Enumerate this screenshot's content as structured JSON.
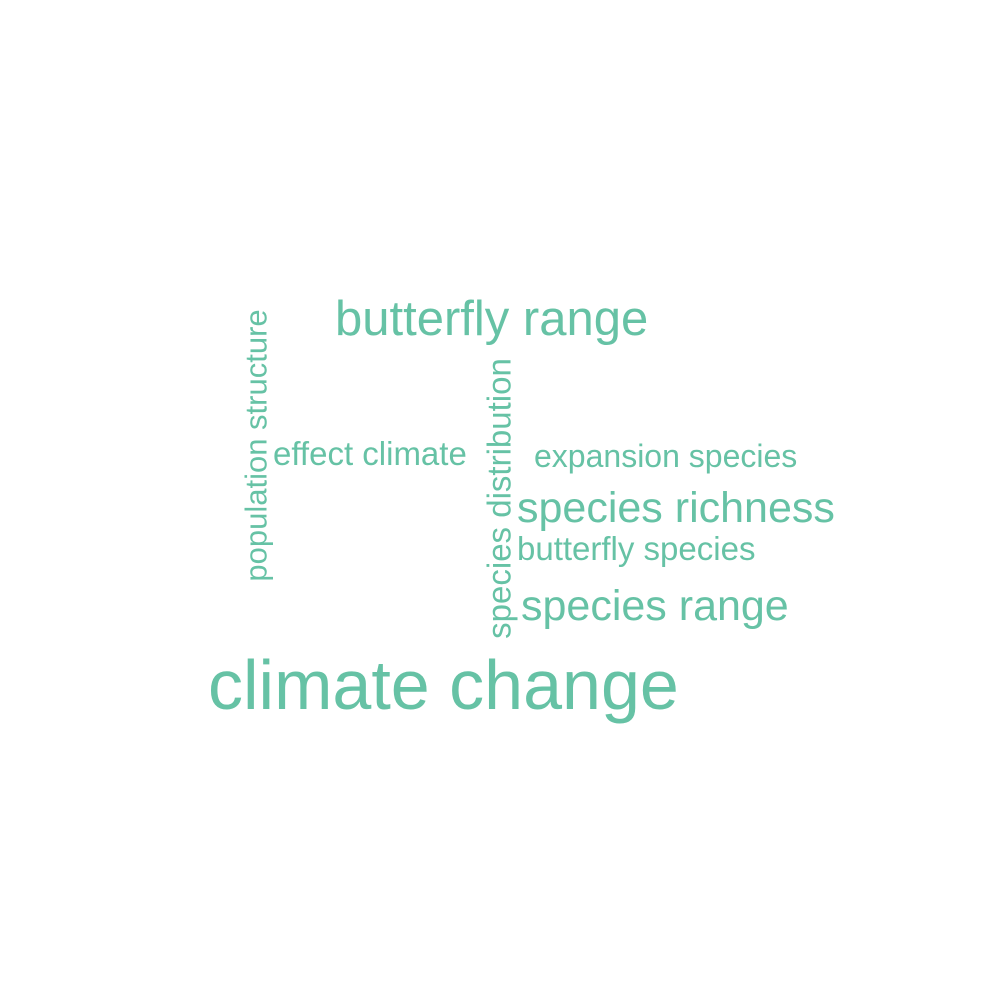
{
  "word_cloud": {
    "color": "#66c2a5",
    "words": [
      {
        "text": "climate change",
        "orientation": "horizontal"
      },
      {
        "text": "butterfly range",
        "orientation": "horizontal"
      },
      {
        "text": "population structure",
        "orientation": "vertical"
      },
      {
        "text": "effect climate",
        "orientation": "horizontal"
      },
      {
        "text": "species distribution",
        "orientation": "vertical"
      },
      {
        "text": "expansion species",
        "orientation": "horizontal"
      },
      {
        "text": "species richness",
        "orientation": "horizontal"
      },
      {
        "text": "butterfly species",
        "orientation": "horizontal"
      },
      {
        "text": "species range",
        "orientation": "horizontal"
      }
    ]
  }
}
